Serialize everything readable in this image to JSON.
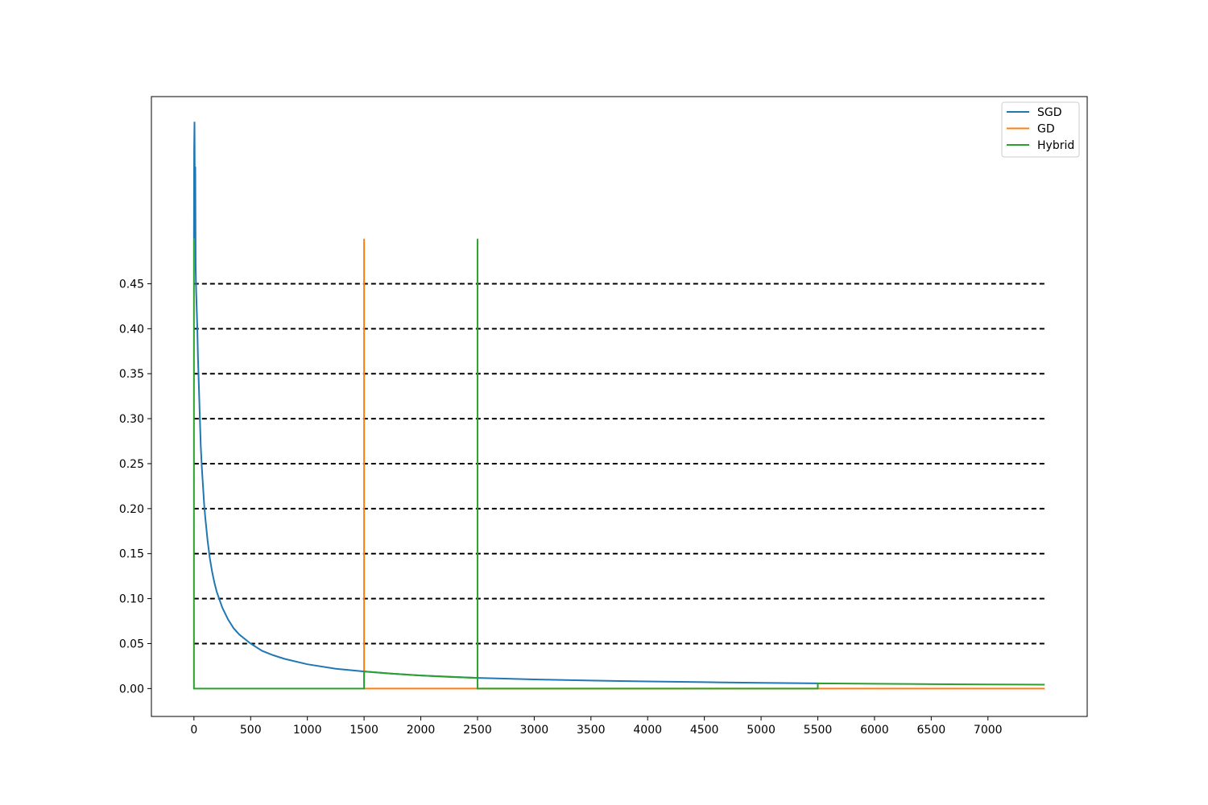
{
  "chart_data": {
    "type": "line",
    "title": "",
    "xlabel": "",
    "ylabel": "",
    "xlim": [
      -375,
      7875
    ],
    "ylim": [
      -0.031,
      0.658
    ],
    "xticks": [
      0,
      500,
      1000,
      1500,
      2000,
      2500,
      3000,
      3500,
      4000,
      4500,
      5000,
      5500,
      6000,
      6500,
      7000
    ],
    "xtick_labels": [
      "0",
      "500",
      "1000",
      "1500",
      "2000",
      "2500",
      "3000",
      "3500",
      "4000",
      "4500",
      "5000",
      "5500",
      "6000",
      "6500",
      "7000"
    ],
    "yticks": [
      0.0,
      0.05,
      0.1,
      0.15,
      0.2,
      0.25,
      0.3,
      0.35,
      0.4,
      0.45
    ],
    "ytick_labels": [
      "0.00",
      "0.05",
      "0.10",
      "0.15",
      "0.20",
      "0.25",
      "0.30",
      "0.35",
      "0.40",
      "0.45"
    ],
    "grid": false,
    "legend_position": "top-right",
    "reference_lines": {
      "style": "dashed",
      "color": "#000000",
      "x_range": [
        0,
        7500
      ],
      "y_values": [
        0.05,
        0.1,
        0.15,
        0.2,
        0.25,
        0.3,
        0.35,
        0.4,
        0.45
      ]
    },
    "series": [
      {
        "name": "SGD",
        "color": "#1f77b4",
        "x": [
          0,
          2,
          5,
          8,
          10,
          12,
          15,
          18,
          20,
          25,
          30,
          35,
          40,
          45,
          50,
          55,
          60,
          70,
          80,
          90,
          100,
          120,
          140,
          160,
          180,
          200,
          250,
          300,
          350,
          400,
          500,
          600,
          700,
          800,
          1000,
          1250,
          1500,
          1750,
          2000,
          2500,
          3000,
          3500,
          4000,
          4500,
          5000,
          5500
        ],
        "y": [
          0.5,
          0.6,
          0.63,
          0.55,
          0.5,
          0.58,
          0.47,
          0.45,
          0.44,
          0.42,
          0.4,
          0.37,
          0.35,
          0.33,
          0.31,
          0.29,
          0.27,
          0.245,
          0.225,
          0.205,
          0.19,
          0.165,
          0.145,
          0.13,
          0.118,
          0.108,
          0.09,
          0.077,
          0.067,
          0.06,
          0.05,
          0.042,
          0.037,
          0.033,
          0.027,
          0.022,
          0.019,
          0.0165,
          0.0145,
          0.0118,
          0.0102,
          0.0089,
          0.0079,
          0.0071,
          0.0064,
          0.0058
        ]
      },
      {
        "name": "GD",
        "color": "#ff7f0e",
        "x": [
          1500,
          1500,
          1500,
          7500
        ],
        "y": [
          0.0,
          0.5,
          0.0,
          0.0
        ]
      },
      {
        "name": "Hybrid",
        "color": "#2ca02c",
        "x": [
          0,
          0,
          1500,
          1500,
          1750,
          2000,
          2250,
          2500,
          2500,
          2500,
          2500,
          5500,
          5500,
          6000,
          6500,
          7000,
          7500
        ],
        "y": [
          0.5,
          0.0,
          0.0,
          0.019,
          0.0165,
          0.0145,
          0.013,
          0.0118,
          0.5,
          0.0,
          0.0,
          0.0,
          0.0058,
          0.0053,
          0.0049,
          0.0046,
          0.0043
        ]
      }
    ]
  }
}
